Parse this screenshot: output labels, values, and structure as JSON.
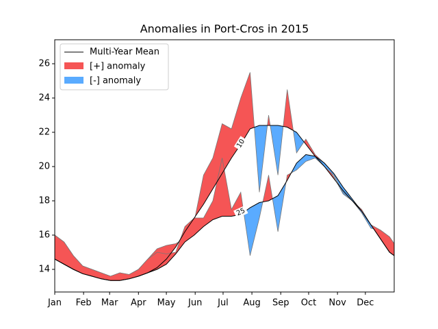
{
  "chart_data": {
    "type": "anomaly",
    "title": "Anomalies in Port-Cros in 2015",
    "x": [
      0,
      10,
      20,
      30,
      40,
      50,
      60,
      70,
      80,
      90,
      100,
      110,
      120,
      130,
      140,
      150,
      160,
      170,
      180,
      190,
      200,
      210,
      220,
      230,
      240,
      250,
      260,
      270,
      280,
      290,
      300,
      310,
      320,
      330,
      340,
      350,
      360,
      365
    ],
    "xlim": [
      0,
      365
    ],
    "xticks": [
      {
        "value": 0,
        "label": "Jan"
      },
      {
        "value": 31,
        "label": "Feb"
      },
      {
        "value": 59,
        "label": "Mar"
      },
      {
        "value": 90,
        "label": "Apr"
      },
      {
        "value": 120,
        "label": "May"
      },
      {
        "value": 151,
        "label": "Jun"
      },
      {
        "value": 181,
        "label": "Jul"
      },
      {
        "value": 212,
        "label": "Aug"
      },
      {
        "value": 243,
        "label": "Sep"
      },
      {
        "value": 273,
        "label": "Oct"
      },
      {
        "value": 304,
        "label": "Nov"
      },
      {
        "value": 334,
        "label": "Dec"
      }
    ],
    "ylim": [
      12.68,
      27.4
    ],
    "yticks": [
      14,
      16,
      18,
      20,
      22,
      24,
      26
    ],
    "legend": {
      "position": "upper left",
      "mean": {
        "name": "Multi-Year Mean",
        "color": "#000000"
      },
      "positive": {
        "name": "[+] anomaly",
        "color": "#f55555"
      },
      "negative": {
        "name": "[-] anomaly",
        "color": "#5aabff"
      }
    },
    "depths": [
      {
        "label": "10",
        "mean": [
          14.6,
          14.3,
          14.0,
          13.75,
          13.6,
          13.45,
          13.35,
          13.35,
          13.45,
          13.6,
          13.8,
          14.1,
          14.6,
          15.3,
          16.2,
          17.0,
          17.8,
          18.7,
          19.6,
          20.5,
          21.3,
          22.2,
          22.4,
          22.4,
          22.4,
          22.3,
          22.0,
          21.3,
          20.6,
          20.0,
          19.3,
          18.6,
          18.0,
          17.4,
          16.6,
          15.8,
          15.0,
          14.8
        ],
        "observed": [
          16.0,
          15.6,
          14.8,
          14.2,
          14.0,
          13.8,
          13.6,
          13.8,
          13.7,
          14.0,
          14.6,
          15.2,
          15.4,
          15.5,
          15.8,
          16.8,
          19.5,
          20.5,
          22.5,
          22.2,
          24.0,
          25.5,
          18.5,
          23.0,
          19.5,
          24.5,
          20.8,
          21.6,
          20.7,
          20.2,
          19.4,
          18.4,
          18.0,
          17.3,
          16.4,
          16.3,
          15.9,
          15.5
        ]
      },
      {
        "label": "25",
        "mean": [
          14.6,
          14.3,
          14.0,
          13.75,
          13.6,
          13.45,
          13.35,
          13.35,
          13.45,
          13.6,
          13.8,
          14.0,
          14.3,
          14.9,
          15.6,
          16.0,
          16.5,
          16.9,
          17.1,
          17.1,
          17.2,
          17.6,
          17.9,
          18.0,
          18.3,
          19.2,
          20.2,
          20.7,
          20.6,
          20.2,
          19.6,
          18.8,
          18.1,
          17.4,
          16.6,
          15.8,
          15.0,
          14.8
        ],
        "observed": [
          16.0,
          15.6,
          14.8,
          14.2,
          14.0,
          13.8,
          13.6,
          13.8,
          13.7,
          14.0,
          14.6,
          15.0,
          14.9,
          15.0,
          16.5,
          17.0,
          17.0,
          18.0,
          20.5,
          17.5,
          18.5,
          14.8,
          17.0,
          19.5,
          16.2,
          19.5,
          19.8,
          20.3,
          20.5,
          20.0,
          19.5,
          18.5,
          18.0,
          17.5,
          16.6,
          16.3,
          15.9,
          15.5
        ]
      }
    ]
  }
}
